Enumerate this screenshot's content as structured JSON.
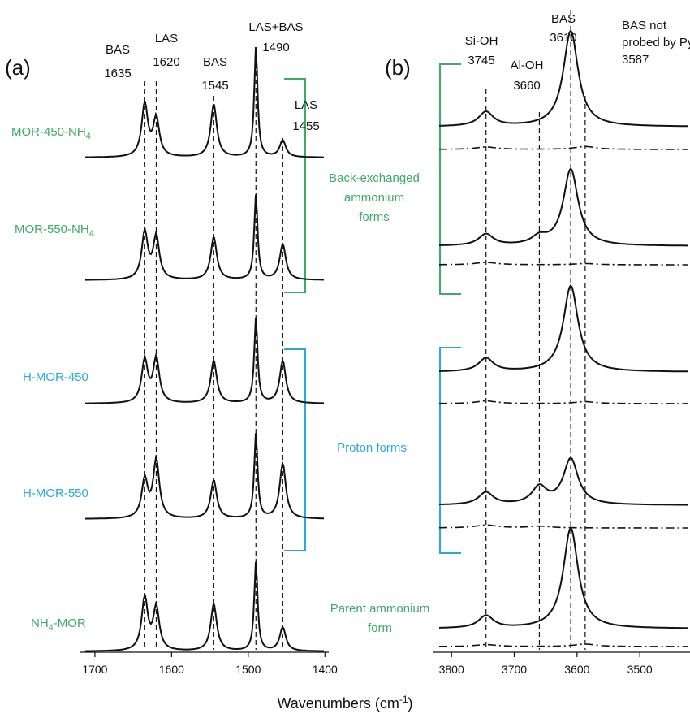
{
  "chart_data": [
    {
      "panel": "(a)",
      "type": "line",
      "xlabel": "Wavenumbers (cm⁻¹)",
      "xlim": [
        1720,
        1395
      ],
      "x_ticks": [
        1700,
        1600,
        1500,
        1400
      ],
      "reference_lines": [
        {
          "x": 1635,
          "label_top": "BAS",
          "label_value": "1635"
        },
        {
          "x": 1620,
          "label_top": "LAS",
          "label_value": "1620"
        },
        {
          "x": 1545,
          "label_top": "BAS",
          "label_value": "1545"
        },
        {
          "x": 1490,
          "label_top": "LAS+BAS",
          "label_value": "1490"
        },
        {
          "x": 1455,
          "label_top": "LAS",
          "label_value": "1455"
        }
      ],
      "series": [
        {
          "name": "MOR-450-NH4",
          "color": "#3daa6c",
          "peaks": [
            {
              "x": 1635,
              "height": 0.62
            },
            {
              "x": 1620,
              "height": 0.45
            },
            {
              "x": 1545,
              "height": 0.62
            },
            {
              "x": 1490,
              "height": 1.3
            },
            {
              "x": 1455,
              "height": 0.2
            }
          ]
        },
        {
          "name": "MOR-550-NH4",
          "color": "#3daa6c",
          "peaks": [
            {
              "x": 1635,
              "height": 0.55
            },
            {
              "x": 1620,
              "height": 0.5
            },
            {
              "x": 1545,
              "height": 0.5
            },
            {
              "x": 1490,
              "height": 1.0
            },
            {
              "x": 1455,
              "height": 0.42
            }
          ]
        },
        {
          "name": "H-MOR-450",
          "color": "#29a9dc",
          "peaks": [
            {
              "x": 1635,
              "height": 0.5
            },
            {
              "x": 1620,
              "height": 0.52
            },
            {
              "x": 1545,
              "height": 0.5
            },
            {
              "x": 1490,
              "height": 1.0
            },
            {
              "x": 1455,
              "height": 0.5
            }
          ]
        },
        {
          "name": "H-MOR-550",
          "color": "#29a9dc",
          "peaks": [
            {
              "x": 1635,
              "height": 0.45
            },
            {
              "x": 1620,
              "height": 0.68
            },
            {
              "x": 1545,
              "height": 0.45
            },
            {
              "x": 1490,
              "height": 1.0
            },
            {
              "x": 1455,
              "height": 0.65
            }
          ]
        },
        {
          "name": "NH4-MOR",
          "color": "#3daa6c",
          "peaks": [
            {
              "x": 1635,
              "height": 0.62
            },
            {
              "x": 1620,
              "height": 0.5
            },
            {
              "x": 1545,
              "height": 0.55
            },
            {
              "x": 1490,
              "height": 1.05
            },
            {
              "x": 1455,
              "height": 0.28
            }
          ]
        }
      ]
    },
    {
      "panel": "(b)",
      "type": "line",
      "xlabel": "Wavenumbers (cm⁻¹)",
      "xlim": [
        3830,
        3420
      ],
      "x_ticks": [
        3800,
        3700,
        3600,
        3500
      ],
      "reference_lines": [
        {
          "x": 3745,
          "label_top": "Si-OH",
          "label_value": "3745"
        },
        {
          "x": 3660,
          "label_top": "Al-OH",
          "label_value": "3660"
        },
        {
          "x": 3610,
          "label_top": "BAS",
          "label_value": "3610"
        },
        {
          "x": 3587,
          "label_top": "BAS not probed by Py",
          "label_value": "3587"
        }
      ],
      "series": [
        {
          "name": "MOR-450-NH4",
          "style": "solid",
          "peaks": [
            {
              "x": 3745,
              "height": 0.15
            },
            {
              "x": 3610,
              "height": 1.0
            }
          ]
        },
        {
          "name": "MOR-450-NH4",
          "style": "dashdot",
          "peaks": [
            {
              "x": 3745,
              "height": 0.1
            },
            {
              "x": 3587,
              "height": 0.12
            }
          ]
        },
        {
          "name": "MOR-550-NH4",
          "style": "solid",
          "peaks": [
            {
              "x": 3745,
              "height": 0.12
            },
            {
              "x": 3660,
              "height": 0.08
            },
            {
              "x": 3610,
              "height": 0.8
            }
          ]
        },
        {
          "name": "MOR-550-NH4",
          "style": "dashdot",
          "peaks": [
            {
              "x": 3745,
              "height": 0.1
            },
            {
              "x": 3587,
              "height": 0.05
            }
          ]
        },
        {
          "name": "H-MOR-450",
          "style": "solid",
          "peaks": [
            {
              "x": 3745,
              "height": 0.14
            },
            {
              "x": 3610,
              "height": 0.9
            }
          ]
        },
        {
          "name": "H-MOR-450",
          "style": "dashdot",
          "peaks": [
            {
              "x": 3745,
              "height": 0.11
            },
            {
              "x": 3587,
              "height": 0.08
            }
          ]
        },
        {
          "name": "H-MOR-550",
          "style": "solid",
          "peaks": [
            {
              "x": 3745,
              "height": 0.13
            },
            {
              "x": 3660,
              "height": 0.18
            },
            {
              "x": 3610,
              "height": 0.48
            }
          ]
        },
        {
          "name": "H-MOR-550",
          "style": "dashdot",
          "peaks": [
            {
              "x": 3745,
              "height": 0.12
            },
            {
              "x": 3660,
              "height": 0.07
            }
          ]
        },
        {
          "name": "NH4-MOR",
          "style": "solid",
          "peaks": [
            {
              "x": 3745,
              "height": 0.13
            },
            {
              "x": 3610,
              "height": 1.05
            }
          ]
        },
        {
          "name": "NH4-MOR",
          "style": "dashdot",
          "peaks": [
            {
              "x": 3745,
              "height": 0.08
            },
            {
              "x": 3587,
              "height": 0.1
            }
          ]
        }
      ]
    }
  ],
  "panel_labels": {
    "a": "(a)",
    "b": "(b)"
  },
  "sample_labels": [
    {
      "base": "MOR-450-NH",
      "sub": "4",
      "pre": "",
      "color": "#3daa6c"
    },
    {
      "base": "MOR-550-NH",
      "sub": "4",
      "pre": "",
      "color": "#3daa6c"
    },
    {
      "base": "H-MOR-450",
      "sub": "",
      "pre": "",
      "color": "#29a9dc"
    },
    {
      "base": "H-MOR-550",
      "sub": "",
      "pre": "",
      "color": "#29a9dc"
    },
    {
      "base": "-MOR",
      "sub": "4",
      "pre": "NH",
      "color": "#3daa6c"
    }
  ],
  "groups": {
    "back_exchanged": {
      "line1": "Back-exchanged",
      "line2": "ammonium",
      "line3": "forms",
      "color": "#3daa6c"
    },
    "proton": {
      "line1": "Proton forms",
      "color": "#29a9dc"
    },
    "parent": {
      "line1": "Parent ammonium",
      "line2": "form",
      "color": "#3daa6c"
    }
  },
  "x_axis_title": {
    "text": "Wavenumbers (cm",
    "sup": "-1",
    "close": ")"
  }
}
